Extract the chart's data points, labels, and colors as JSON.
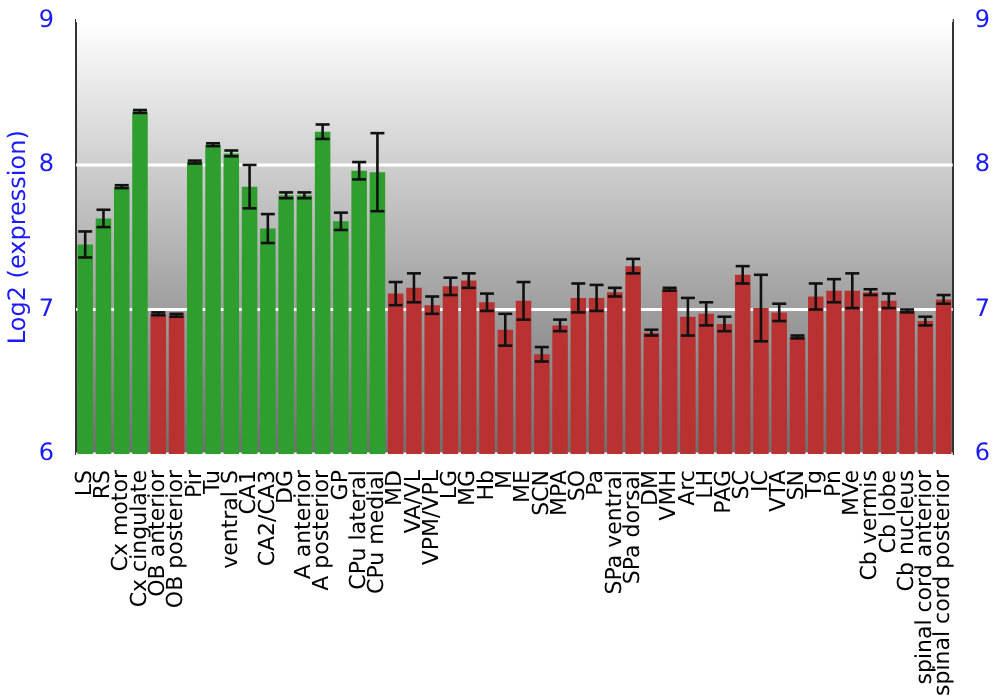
{
  "chart_data": {
    "type": "bar",
    "ylabel": "Log2 (expression)",
    "categories": [
      "LS",
      "RS",
      "Cx motor",
      "Cx cingulate",
      "OB anterior",
      "OB posterior",
      "Pir",
      "Tu",
      "ventral S",
      "CA1",
      "CA2/CA3",
      "DG",
      "A anterior",
      "A posterior",
      "GP",
      "CPu lateral",
      "CPu medial",
      "MD",
      "VA/VL",
      "VPM/VPL",
      "LG",
      "MG",
      "Hb",
      "M",
      "ME",
      "SCN",
      "MPA",
      "SO",
      "Pa",
      "SPa ventral",
      "SPa dorsal",
      "DM",
      "VMH",
      "Arc",
      "LH",
      "PAG",
      "SC",
      "IC",
      "VTA",
      "SN",
      "Tg",
      "Pn",
      "MVe",
      "Cb vermis",
      "Cb lobe",
      "Cb nucleus",
      "spinal cord anterior",
      "spinal cord posterior"
    ],
    "values": [
      7.45,
      7.63,
      7.85,
      8.37,
      6.97,
      6.96,
      8.02,
      8.14,
      8.08,
      7.85,
      7.56,
      7.79,
      7.79,
      8.23,
      7.61,
      7.96,
      7.95,
      7.11,
      7.15,
      7.03,
      7.16,
      7.2,
      7.05,
      6.86,
      7.06,
      6.69,
      6.89,
      7.08,
      7.08,
      7.12,
      7.3,
      6.84,
      7.14,
      6.95,
      6.97,
      6.9,
      7.24,
      7.01,
      6.98,
      6.81,
      7.09,
      7.13,
      7.13,
      7.12,
      7.06,
      6.99,
      6.92,
      7.07
    ],
    "errors": [
      0.09,
      0.06,
      0.01,
      0.01,
      0.01,
      0.01,
      0.01,
      0.01,
      0.02,
      0.15,
      0.1,
      0.02,
      0.02,
      0.05,
      0.06,
      0.06,
      0.27,
      0.08,
      0.1,
      0.06,
      0.06,
      0.05,
      0.06,
      0.11,
      0.13,
      0.05,
      0.04,
      0.1,
      0.09,
      0.03,
      0.05,
      0.02,
      0.01,
      0.13,
      0.08,
      0.05,
      0.06,
      0.23,
      0.06,
      0.01,
      0.09,
      0.08,
      0.12,
      0.02,
      0.05,
      0.01,
      0.03,
      0.03
    ],
    "colors": [
      "#2e9e2e",
      "#2e9e2e",
      "#2e9e2e",
      "#2e9e2e",
      "#b83232",
      "#b83232",
      "#2e9e2e",
      "#2e9e2e",
      "#2e9e2e",
      "#2e9e2e",
      "#2e9e2e",
      "#2e9e2e",
      "#2e9e2e",
      "#2e9e2e",
      "#2e9e2e",
      "#2e9e2e",
      "#2e9e2e",
      "#b83232",
      "#b83232",
      "#b83232",
      "#b83232",
      "#b83232",
      "#b83232",
      "#b83232",
      "#b83232",
      "#b83232",
      "#b83232",
      "#b83232",
      "#b83232",
      "#b83232",
      "#b83232",
      "#b83232",
      "#b83232",
      "#b83232",
      "#b83232",
      "#b83232",
      "#b83232",
      "#b83232",
      "#b83232",
      "#b83232",
      "#b83232",
      "#b83232",
      "#b83232",
      "#b83232",
      "#b83232",
      "#b83232",
      "#b83232",
      "#b83232"
    ],
    "ylim": [
      6,
      9
    ],
    "yticks": [
      6,
      7,
      8,
      9
    ],
    "y2lim": [
      6,
      9
    ],
    "y2ticks": [
      6,
      7,
      8,
      9
    ],
    "grid": "y",
    "legend": false
  }
}
